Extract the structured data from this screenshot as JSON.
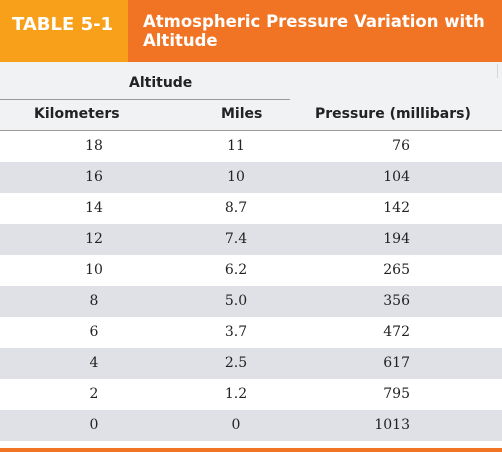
{
  "table": {
    "label": "TABLE 5-1",
    "title": "Atmospheric Pressure Variation with Altitude",
    "group_header": "Altitude",
    "columns": {
      "kilometers": "Kilometers",
      "miles": "Miles",
      "pressure": "Pressure (millibars)"
    },
    "rows": [
      {
        "km": "18",
        "mi": "11",
        "pressure": "76"
      },
      {
        "km": "16",
        "mi": "10",
        "pressure": "104"
      },
      {
        "km": "14",
        "mi": "8.7",
        "pressure": "142"
      },
      {
        "km": "12",
        "mi": "7.4",
        "pressure": "194"
      },
      {
        "km": "10",
        "mi": "6.2",
        "pressure": "265"
      },
      {
        "km": "8",
        "mi": "5.0",
        "pressure": "356"
      },
      {
        "km": "6",
        "mi": "3.7",
        "pressure": "472"
      },
      {
        "km": "4",
        "mi": "2.5",
        "pressure": "617"
      },
      {
        "km": "2",
        "mi": "1.2",
        "pressure": "795"
      },
      {
        "km": "0",
        "mi": "0",
        "pressure": "1013"
      }
    ]
  },
  "colors": {
    "header_orange": "#f07424",
    "label_orange": "#f9a01b",
    "shaded_row": "#dfe1e6",
    "column_header_bg": "#f1f2f4"
  }
}
